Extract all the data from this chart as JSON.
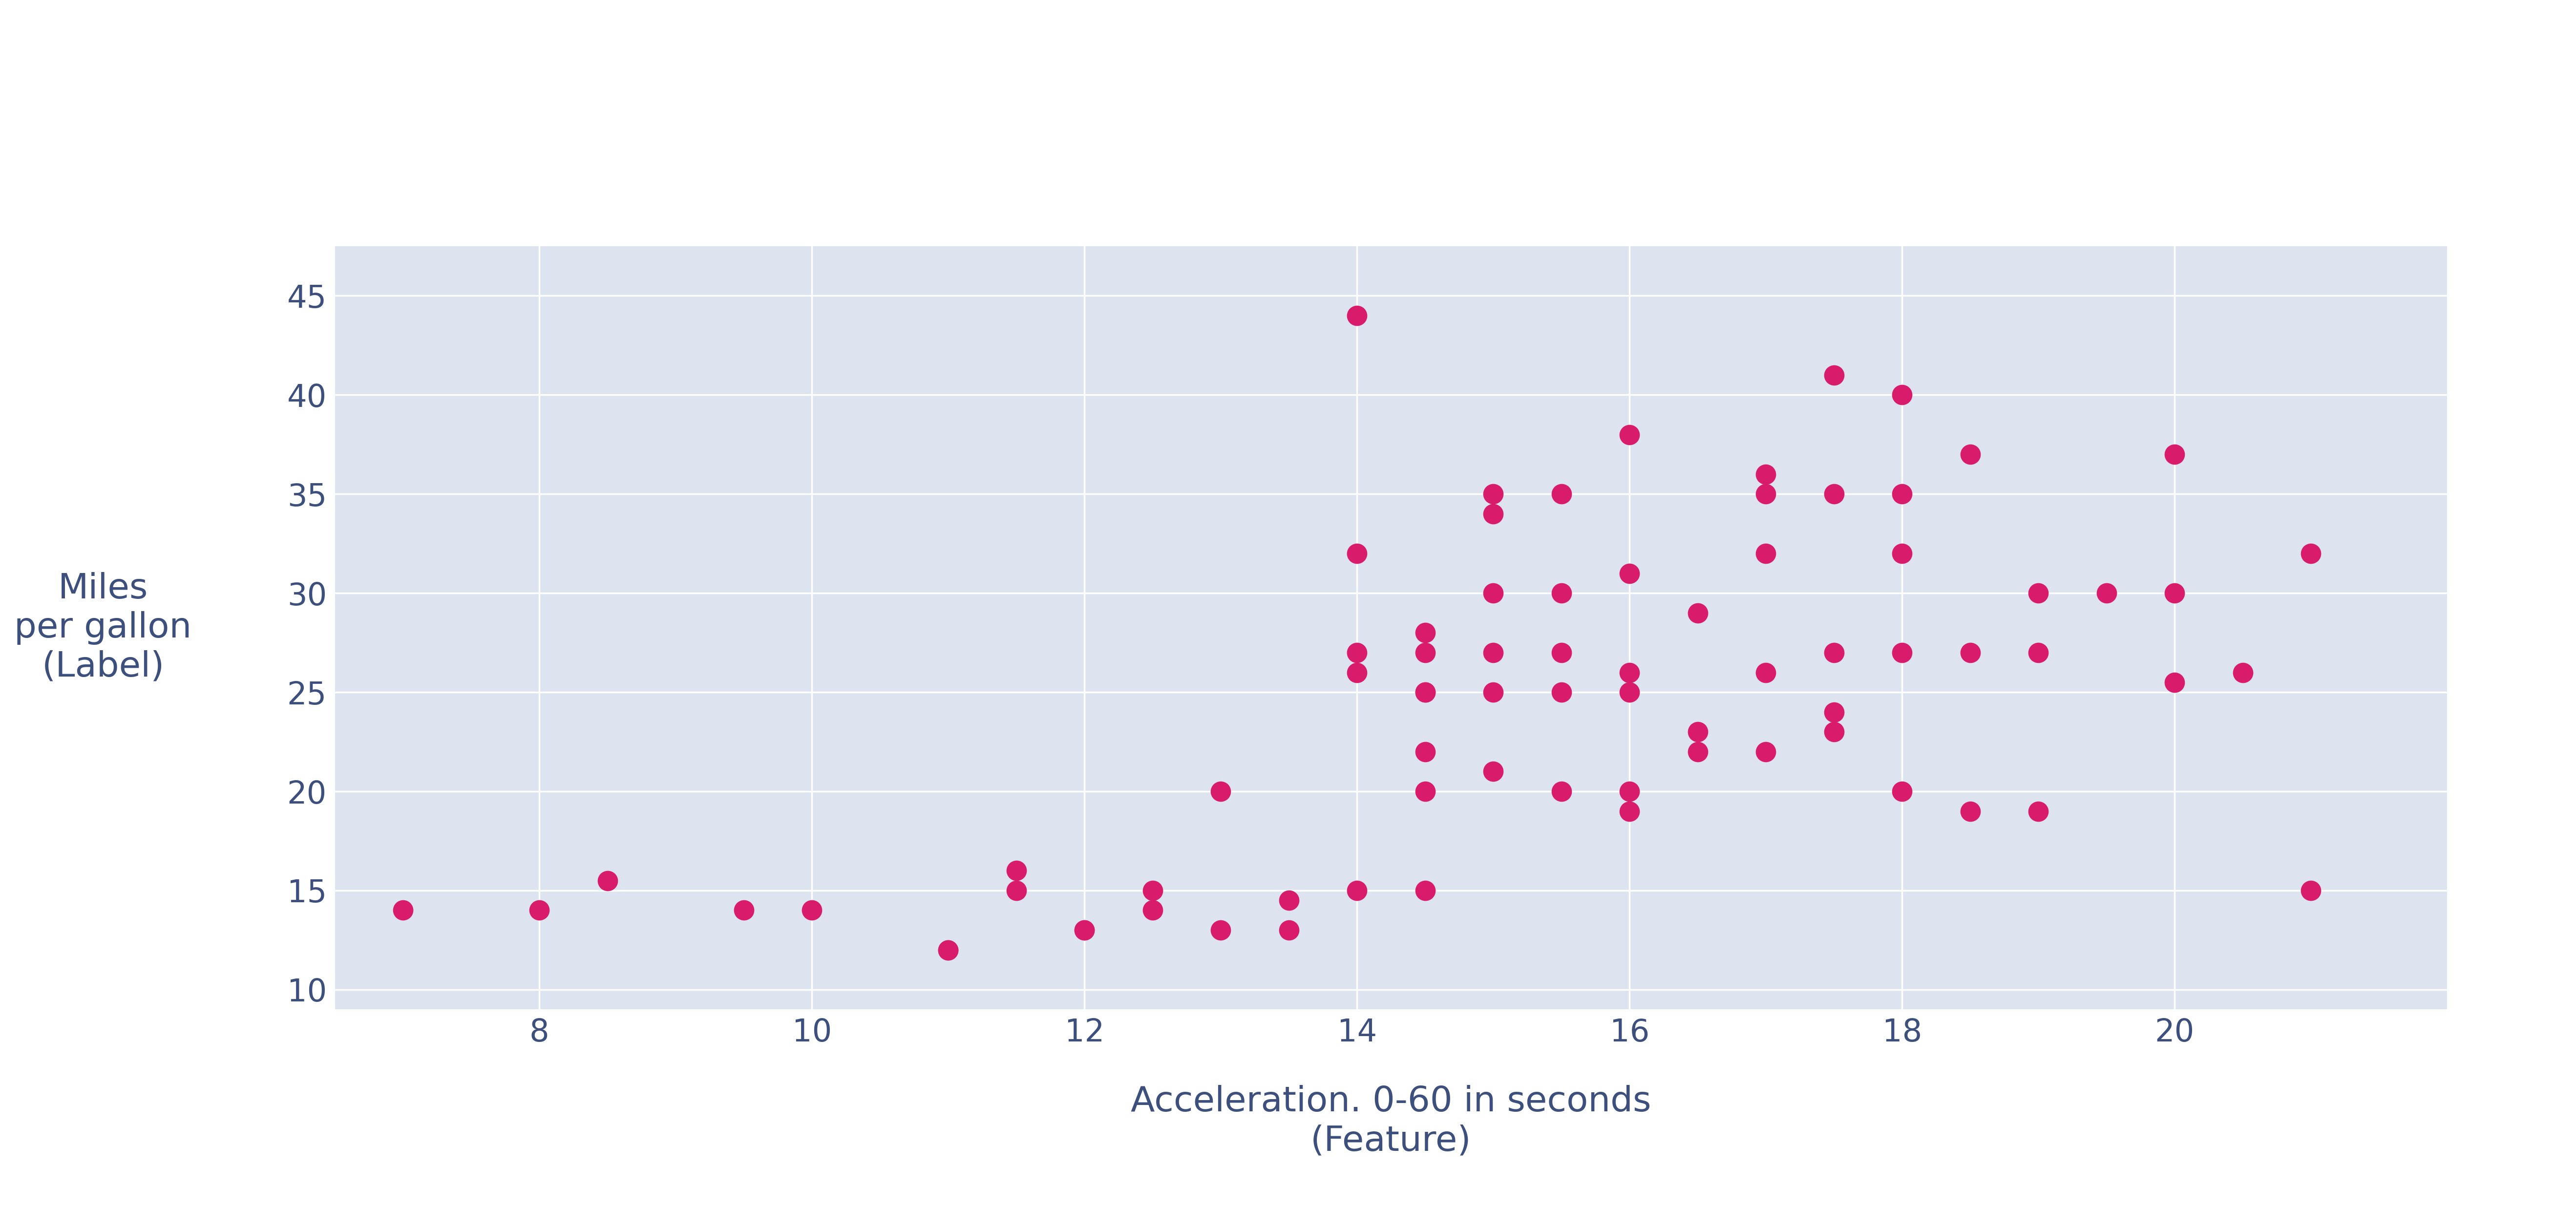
{
  "x": [
    7.0,
    8.0,
    8.5,
    9.5,
    10.0,
    11.0,
    11.0,
    11.5,
    11.5,
    12.0,
    12.0,
    12.5,
    12.5,
    13.0,
    13.0,
    13.5,
    13.5,
    14.0,
    14.0,
    14.0,
    14.0,
    14.0,
    14.5,
    14.5,
    14.5,
    14.5,
    14.5,
    14.5,
    14.5,
    15.0,
    15.0,
    15.0,
    15.0,
    15.0,
    15.0,
    15.5,
    15.5,
    15.5,
    15.5,
    15.5,
    16.0,
    16.0,
    16.0,
    16.0,
    16.0,
    16.0,
    16.5,
    16.5,
    16.5,
    17.0,
    17.0,
    17.0,
    17.0,
    17.0,
    17.5,
    17.5,
    17.5,
    17.5,
    17.5,
    18.0,
    18.0,
    18.0,
    18.0,
    18.0,
    18.5,
    18.5,
    18.5,
    19.0,
    19.0,
    19.0,
    19.5,
    20.0,
    20.0,
    20.0,
    20.5,
    21.0,
    21.0
  ],
  "y": [
    14.0,
    14.0,
    15.5,
    14.0,
    14.0,
    12.0,
    12.0,
    16.0,
    15.0,
    13.0,
    13.0,
    15.0,
    14.0,
    20.0,
    13.0,
    14.5,
    13.0,
    44.0,
    32.0,
    27.0,
    26.0,
    15.0,
    28.0,
    27.0,
    25.0,
    25.0,
    22.0,
    20.0,
    15.0,
    35.0,
    34.0,
    30.0,
    27.0,
    25.0,
    21.0,
    35.0,
    30.0,
    27.0,
    25.0,
    20.0,
    38.0,
    31.0,
    26.0,
    25.0,
    20.0,
    19.0,
    29.0,
    23.0,
    22.0,
    36.0,
    35.0,
    32.0,
    26.0,
    22.0,
    41.0,
    35.0,
    27.0,
    24.0,
    23.0,
    40.0,
    35.0,
    32.0,
    27.0,
    20.0,
    37.0,
    27.0,
    19.0,
    30.0,
    27.0,
    19.0,
    30.0,
    37.0,
    30.0,
    25.5,
    26.0,
    32.0,
    15.0
  ],
  "dot_color": "#d81b6a",
  "dot_size": 900,
  "dot_alpha": 1.0,
  "bg_color": "#dde4ef",
  "fig_bg_color": "#ffffff",
  "xlabel": "Acceleration. 0-60 in seconds\n(Feature)",
  "ylabel": "Miles\nper gallon\n(Label)",
  "xlabel_fontsize": 52,
  "ylabel_fontsize": 52,
  "tick_fontsize": 46,
  "xlim": [
    6.5,
    22.0
  ],
  "ylim": [
    9.0,
    47.5
  ],
  "xticks": [
    8,
    10,
    12,
    14,
    16,
    18,
    20
  ],
  "yticks": [
    10,
    15,
    20,
    25,
    30,
    35,
    40,
    45
  ],
  "grid_color": "#ffffff",
  "grid_linewidth": 2.5,
  "tick_color": "#3d4f7c"
}
